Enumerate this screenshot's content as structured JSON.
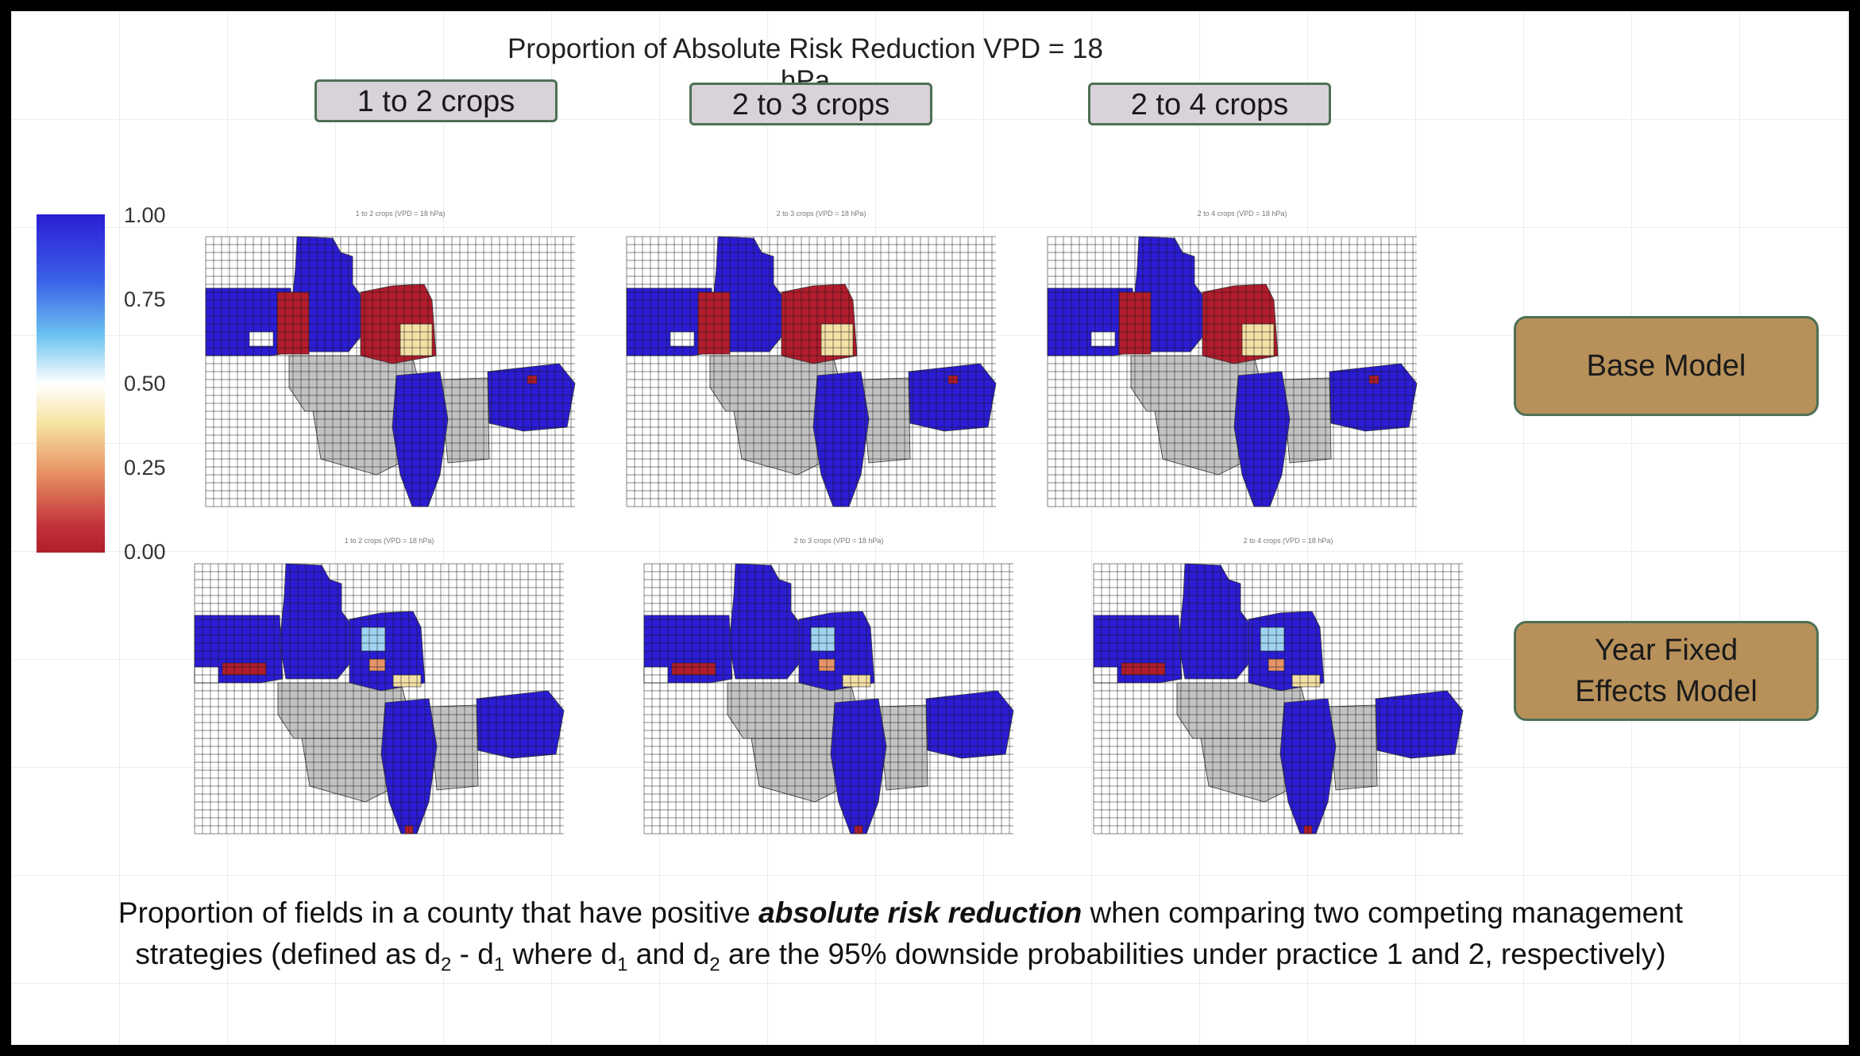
{
  "slide": {
    "title": "Proportion of Absolute Risk Reduction VPD = 18 hPa"
  },
  "crop_tags": [
    {
      "label": "1 to 2 crops"
    },
    {
      "label": "2 to 3 crops"
    },
    {
      "label": "2 to 4 crops"
    }
  ],
  "model_tags": [
    {
      "label": "Base Model"
    },
    {
      "label": "Year Fixed Effects Model"
    }
  ],
  "legend": {
    "ticks": [
      "1.00",
      "0.75",
      "0.50",
      "0.25",
      "0.00"
    ],
    "colors": {
      "high": "#2b1dd4",
      "mid": "#ffffff",
      "low": "#b11d2c"
    }
  },
  "maps": [
    {
      "subtitle": "1 to 2 crops (VPD = 18 hPa)"
    },
    {
      "subtitle": "2 to 3 crops (VPD = 18 hPa)"
    },
    {
      "subtitle": "2 to 4 crops (VPD = 18 hPa)"
    },
    {
      "subtitle": "1 to 2 crops (VPD = 18 hPa)"
    },
    {
      "subtitle": "2 to 3 crops (VPD = 18 hPa)"
    },
    {
      "subtitle": "2 to 4 crops (VPD = 18 hPa)"
    }
  ],
  "caption": {
    "part1": "Proportion of fields in a county that have positive ",
    "emphasis": "absolute risk reduction",
    "part2": " when comparing two competing management strategies (defined as d",
    "sub_a": "2",
    "part3": " - d",
    "sub_b": "1",
    "part4": " where d",
    "sub_c": "1",
    "part5": " and d",
    "sub_d": "2",
    "part6": " are the 95% downside probabilities under practice 1 and 2, respectively)"
  }
}
